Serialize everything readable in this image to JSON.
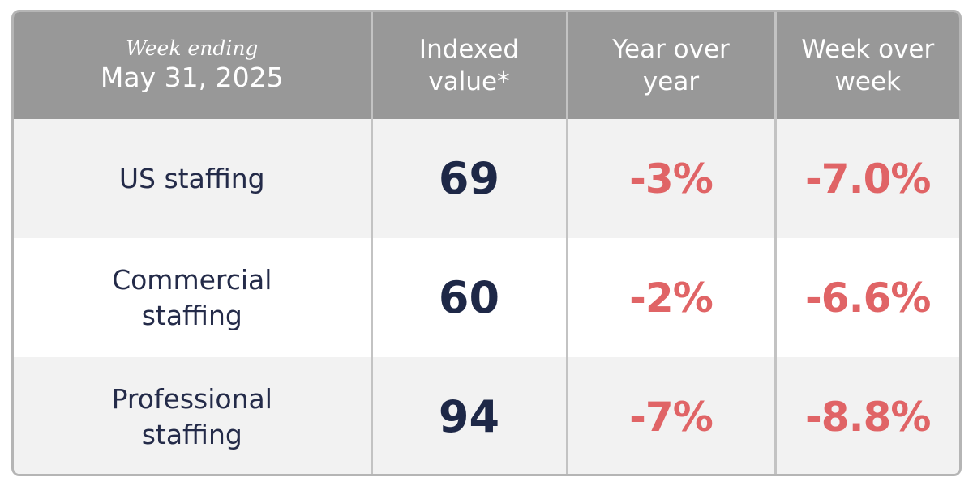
{
  "header": {
    "week_label": "Week ending",
    "week_date": "May 31, 2025",
    "col_indexed": "Indexed\nvalue*",
    "col_yoy": "Year over\nyear",
    "col_wow": "Week over\nweek"
  },
  "rows": [
    {
      "name": "US staffing",
      "indexed": "69",
      "yoy": "-3%",
      "wow": "-7.0%"
    },
    {
      "name": "Commercial\nstaffing",
      "indexed": "60",
      "yoy": "-2%",
      "wow": "-6.6%"
    },
    {
      "name": "Professional\nstaffing",
      "indexed": "94",
      "yoy": "-7%",
      "wow": "-8.8%"
    }
  ],
  "colors": {
    "header_bg": "#989898",
    "row_alt_bg": "#f2f2f2",
    "value_text": "#1e2847",
    "negative_change": "#e06466"
  }
}
